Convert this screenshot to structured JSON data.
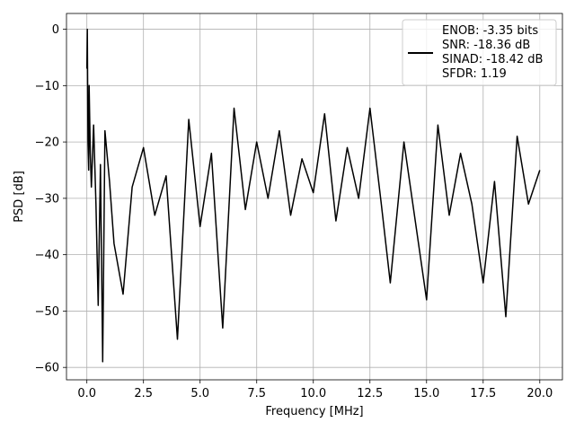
{
  "chart_data": {
    "type": "line",
    "xlabel": "Frequency [MHz]",
    "ylabel": "PSD [dB]",
    "xlim": [
      -0.9,
      21.0
    ],
    "ylim": [
      -62.2,
      2.8
    ],
    "xticks": [
      0.0,
      2.5,
      5.0,
      7.5,
      10.0,
      12.5,
      15.0,
      17.5,
      20.0
    ],
    "xtick_labels": [
      "0.0",
      "2.5",
      "5.0",
      "7.5",
      "10.0",
      "12.5",
      "15.0",
      "17.5",
      "20.0"
    ],
    "yticks": [
      0,
      -10,
      -20,
      -30,
      -40,
      -50,
      -60
    ],
    "ytick_labels": [
      "0",
      "−10",
      "−20",
      "−30",
      "−40",
      "−50",
      "−60"
    ],
    "grid": true,
    "legend_placement": "upper-right",
    "series": [
      {
        "color": "#000000",
        "legend_lines": [
          "ENOB: -3.35 bits",
          "SNR: -18.36 dB",
          "SINAD: -18.42 dB",
          "SFDR: 1.19"
        ],
        "x": [
          0.0,
          0.02,
          0.05,
          0.08,
          0.1,
          0.15,
          0.2,
          0.3,
          0.4,
          0.5,
          0.6,
          0.7,
          0.8,
          1.0,
          1.2,
          1.6,
          2.0,
          2.5,
          3.0,
          3.5,
          4.0,
          4.5,
          5.0,
          5.5,
          6.0,
          6.5,
          7.0,
          7.5,
          8.0,
          8.5,
          9.0,
          9.5,
          10.0,
          10.5,
          11.0,
          11.5,
          12.0,
          12.5,
          13.0,
          13.4,
          14.0,
          14.5,
          15.0,
          15.5,
          16.0,
          16.5,
          17.0,
          17.5,
          18.0,
          18.5,
          19.0,
          19.5,
          20.0
        ],
        "y": [
          -7,
          0,
          -20,
          -25,
          -10,
          -22,
          -28,
          -17,
          -31,
          -49,
          -24,
          -59,
          -18,
          -27,
          -38,
          -47,
          -28,
          -21,
          -33,
          -26,
          -55,
          -16,
          -35,
          -22,
          -53,
          -14,
          -32,
          -20,
          -30,
          -18,
          -33,
          -23,
          -29,
          -15,
          -34,
          -21,
          -30,
          -14,
          -31,
          -45,
          -20,
          -34,
          -48,
          -17,
          -33,
          -22,
          -31,
          -45,
          -27,
          -51,
          -19,
          -31,
          -25
        ]
      }
    ]
  }
}
